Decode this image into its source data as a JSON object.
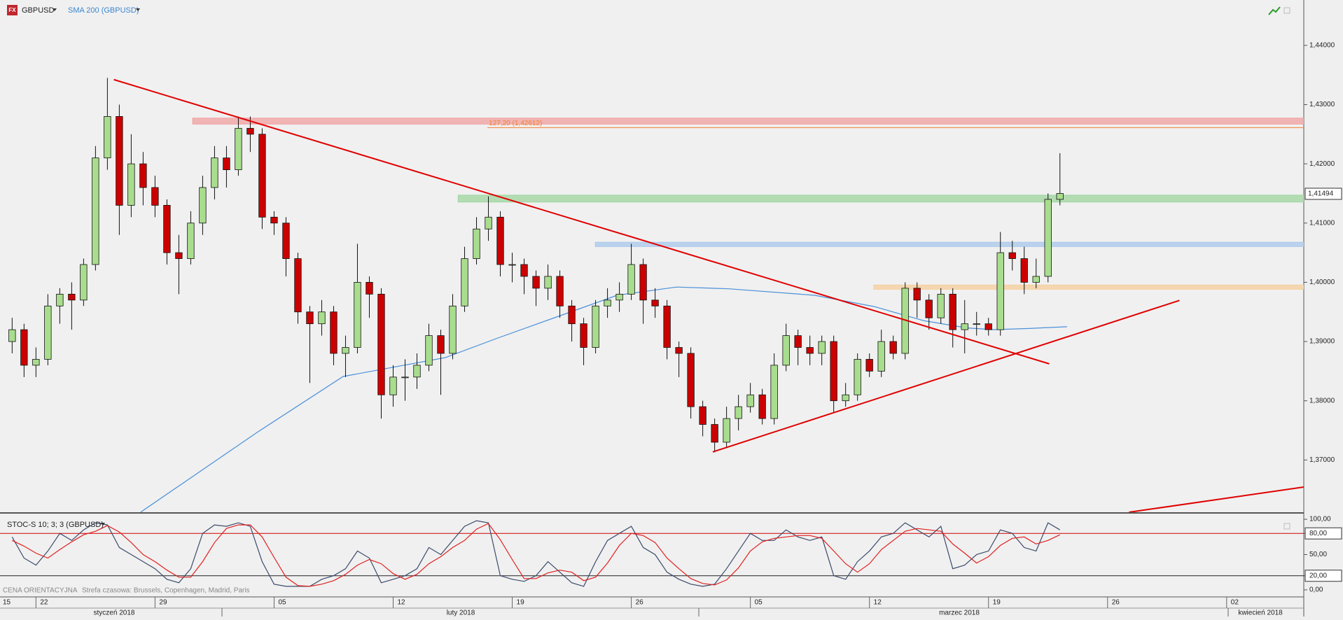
{
  "toolbar": {
    "icon": "FX"
  },
  "footer": {
    "reference": "CENA ORIENTACYJNA",
    "timezone": "Strefa czasowa: Brussels, Copenhagen, Madrid, Paris"
  },
  "chart_data": [
    {
      "type": "candlestick",
      "symbol": "GBPUSD",
      "x": [
        -1,
        -0.5,
        0,
        0.5,
        1,
        1.5,
        2,
        2.5,
        3,
        3.5,
        4,
        4.5,
        5,
        5.5,
        6,
        6.5,
        7,
        7.5,
        8,
        8.5,
        9,
        9.5,
        10,
        10.5,
        11,
        11.5,
        12,
        12.5,
        13,
        13.5,
        14,
        14.5,
        15,
        15.5,
        16,
        16.5,
        17,
        17.5,
        18,
        18.5,
        19,
        19.5,
        20,
        20.5,
        21,
        21.5,
        22,
        22.5,
        23,
        23.5,
        24,
        24.5,
        25,
        25.5,
        26,
        26.5,
        27,
        27.5,
        28,
        28.5,
        29,
        29.5,
        30,
        30.5,
        31,
        31.5,
        32,
        32.5,
        33,
        33.5,
        34,
        34.5,
        35,
        35.5,
        36,
        36.5,
        37,
        37.5,
        38,
        38.5,
        39,
        39.5,
        40,
        40.5,
        41,
        41.5,
        42,
        42.5,
        43
      ],
      "open": [
        1.39,
        1.392,
        1.386,
        1.387,
        1.396,
        1.398,
        1.397,
        1.403,
        1.421,
        1.428,
        1.413,
        1.42,
        1.416,
        1.413,
        1.405,
        1.404,
        1.41,
        1.416,
        1.421,
        1.419,
        1.426,
        1.425,
        1.411,
        1.41,
        1.404,
        1.395,
        1.393,
        1.395,
        1.388,
        1.389,
        1.4,
        1.398,
        1.381,
        1.384,
        1.384,
        1.386,
        1.391,
        1.388,
        1.396,
        1.404,
        1.409,
        1.411,
        1.403,
        1.403,
        1.401,
        1.399,
        1.401,
        1.396,
        1.393,
        1.389,
        1.396,
        1.397,
        1.398,
        1.403,
        1.397,
        1.396,
        1.389,
        1.388,
        1.379,
        1.376,
        1.373,
        1.377,
        1.379,
        1.381,
        1.377,
        1.386,
        1.391,
        1.389,
        1.388,
        1.39,
        1.38,
        1.381,
        1.387,
        1.385,
        1.39,
        1.388,
        1.399,
        1.397,
        1.394,
        1.398,
        1.392,
        1.393,
        1.393,
        1.392,
        1.405,
        1.404,
        1.4,
        1.401,
        1.414
      ],
      "high": [
        1.394,
        1.393,
        1.389,
        1.398,
        1.399,
        1.4,
        1.404,
        1.423,
        1.4345,
        1.43,
        1.425,
        1.422,
        1.418,
        1.414,
        1.408,
        1.412,
        1.418,
        1.423,
        1.423,
        1.428,
        1.428,
        1.426,
        1.412,
        1.411,
        1.405,
        1.396,
        1.397,
        1.396,
        1.391,
        1.4065,
        1.401,
        1.399,
        1.386,
        1.387,
        1.388,
        1.393,
        1.392,
        1.398,
        1.406,
        1.411,
        1.4145,
        1.412,
        1.405,
        1.404,
        1.402,
        1.403,
        1.402,
        1.397,
        1.394,
        1.397,
        1.399,
        1.4,
        1.4065,
        1.404,
        1.399,
        1.397,
        1.39,
        1.389,
        1.38,
        1.377,
        1.379,
        1.381,
        1.383,
        1.382,
        1.388,
        1.393,
        1.392,
        1.391,
        1.391,
        1.391,
        1.383,
        1.388,
        1.388,
        1.392,
        1.391,
        1.4,
        1.4,
        1.398,
        1.399,
        1.399,
        1.397,
        1.395,
        1.394,
        1.4085,
        1.407,
        1.406,
        1.404,
        1.415,
        1.4218
      ],
      "low": [
        1.388,
        1.384,
        1.384,
        1.386,
        1.393,
        1.392,
        1.396,
        1.402,
        1.419,
        1.408,
        1.411,
        1.413,
        1.411,
        1.403,
        1.398,
        1.403,
        1.408,
        1.414,
        1.416,
        1.418,
        1.422,
        1.409,
        1.408,
        1.401,
        1.393,
        1.383,
        1.391,
        1.386,
        1.384,
        1.388,
        1.394,
        1.377,
        1.379,
        1.38,
        1.382,
        1.385,
        1.381,
        1.387,
        1.395,
        1.403,
        1.407,
        1.401,
        1.4,
        1.398,
        1.396,
        1.397,
        1.394,
        1.39,
        1.386,
        1.388,
        1.394,
        1.395,
        1.397,
        1.393,
        1.394,
        1.387,
        1.384,
        1.377,
        1.374,
        1.3713,
        1.372,
        1.375,
        1.378,
        1.376,
        1.376,
        1.385,
        1.386,
        1.386,
        1.386,
        1.378,
        1.379,
        1.38,
        1.384,
        1.384,
        1.387,
        1.387,
        1.394,
        1.392,
        1.393,
        1.389,
        1.388,
        1.391,
        1.391,
        1.391,
        1.402,
        1.398,
        1.399,
        1.4,
        1.413
      ],
      "close": [
        1.392,
        1.386,
        1.387,
        1.396,
        1.398,
        1.397,
        1.403,
        1.421,
        1.428,
        1.413,
        1.42,
        1.416,
        1.413,
        1.405,
        1.404,
        1.41,
        1.416,
        1.421,
        1.419,
        1.426,
        1.425,
        1.411,
        1.41,
        1.404,
        1.395,
        1.393,
        1.395,
        1.388,
        1.389,
        1.4,
        1.398,
        1.381,
        1.384,
        1.384,
        1.386,
        1.391,
        1.388,
        1.396,
        1.404,
        1.409,
        1.411,
        1.403,
        1.403,
        1.401,
        1.399,
        1.401,
        1.396,
        1.393,
        1.389,
        1.396,
        1.397,
        1.398,
        1.403,
        1.397,
        1.396,
        1.389,
        1.388,
        1.379,
        1.376,
        1.373,
        1.377,
        1.379,
        1.381,
        1.377,
        1.386,
        1.391,
        1.389,
        1.388,
        1.39,
        1.38,
        1.381,
        1.387,
        1.385,
        1.39,
        1.388,
        1.399,
        1.397,
        1.394,
        1.398,
        1.392,
        1.393,
        1.393,
        1.392,
        1.405,
        1.404,
        1.4,
        1.401,
        1.414,
        1.415
      ],
      "up_color": "#a9dd8e",
      "down_color": "#cc0000",
      "overlays": [
        {
          "name": "SMA 200 (GBPUSD)",
          "color": "#4a90d9",
          "x": [
            4.4,
            9.3,
            12.9,
            17.2,
            19.4,
            21.9,
            24.4,
            26.9,
            29.1,
            32.7,
            35.2,
            37.3,
            39.1,
            40.2,
            41.7,
            43.3
          ],
          "values": [
            1.3612,
            1.3747,
            1.3841,
            1.3873,
            1.3906,
            1.3942,
            1.3978,
            1.3992,
            1.3989,
            1.3978,
            1.3959,
            1.3935,
            1.3923,
            1.392,
            1.3922,
            1.3925
          ]
        }
      ],
      "trendlines": [
        {
          "color": "#e00000",
          "x": [
            3.27,
            42.55
          ],
          "values": [
            1.43422,
            1.38624
          ]
        },
        {
          "color": "#e00000",
          "x": [
            28.42,
            48.02
          ],
          "values": [
            1.37136,
            1.39694
          ]
        },
        {
          "color": "#e00000",
          "x": [
            45.9,
            53.24
          ],
          "values": [
            1.36118,
            1.36543
          ]
        }
      ],
      "zones": [
        {
          "color": "#f2a0a0",
          "x0": 6.58,
          "range": [
            1.42671,
            1.42772
          ]
        },
        {
          "color": "#9fd69f",
          "x0": 17.73,
          "range": [
            1.41355,
            1.41471
          ]
        },
        {
          "color": "#a9c8ec",
          "x0": 23.49,
          "range": [
            1.40604,
            1.40676
          ]
        },
        {
          "color": "#f6cf9c",
          "x0": 35.18,
          "range": [
            1.39882,
            1.39954
          ]
        }
      ],
      "fib_level": {
        "value": 1.42612,
        "label": "127,20 (1,42612)",
        "color": "#f08030",
        "x0": 18.96
      },
      "last_price": {
        "value": 1.41494,
        "label": "1,41494"
      },
      "xlim": [
        -1.51,
        53.24
      ],
      "xticks": [
        {
          "value": -5,
          "label": "15"
        },
        {
          "value": 0,
          "label": "22"
        },
        {
          "value": 5,
          "label": "29"
        },
        {
          "value": 10,
          "label": "05"
        },
        {
          "value": 15,
          "label": "12"
        },
        {
          "value": 20,
          "label": "19"
        },
        {
          "value": 25,
          "label": "26"
        },
        {
          "value": 30,
          "label": "05"
        },
        {
          "value": 35,
          "label": "12"
        },
        {
          "value": 40,
          "label": "19"
        },
        {
          "value": 45,
          "label": "26"
        },
        {
          "value": 50,
          "label": "02"
        }
      ],
      "months": [
        "styczeń 2018",
        "luty 2018",
        "marzec 2018",
        "kwiecień 2018"
      ],
      "ylim": [
        1.36118,
        1.44766
      ],
      "yticks": [
        {
          "value": 1.37,
          "label": "1,37000"
        },
        {
          "value": 1.38,
          "label": "1,38000"
        },
        {
          "value": 1.39,
          "label": "1,39000"
        },
        {
          "value": 1.4,
          "label": "1,40000"
        },
        {
          "value": 1.41,
          "label": "1,41000"
        },
        {
          "value": 1.42,
          "label": "1,42000"
        },
        {
          "value": 1.43,
          "label": "1,43000"
        },
        {
          "value": 1.44,
          "label": "1,44000"
        }
      ]
    },
    {
      "type": "line",
      "title": "STOC-S 10; 3; 3 (GBPUSD)",
      "x": [
        -1,
        -0.5,
        0,
        0.5,
        1,
        1.5,
        2,
        2.5,
        3,
        3.5,
        4,
        4.5,
        5,
        5.5,
        6,
        6.5,
        7,
        7.5,
        8,
        8.5,
        9,
        9.5,
        10,
        10.5,
        11,
        11.5,
        12,
        12.5,
        13,
        13.5,
        14,
        14.5,
        15,
        15.5,
        16,
        16.5,
        17,
        17.5,
        18,
        18.5,
        19,
        19.5,
        20,
        20.5,
        21,
        21.5,
        22,
        22.5,
        23,
        23.5,
        24,
        24.5,
        25,
        25.5,
        26,
        26.5,
        27,
        27.5,
        28,
        28.5,
        29,
        29.5,
        30,
        30.5,
        31,
        31.5,
        32,
        32.5,
        33,
        33.5,
        34,
        34.5,
        35,
        35.5,
        36,
        36.5,
        37,
        37.5,
        38,
        38.5,
        39,
        39.5,
        40,
        40.5,
        41,
        41.5,
        42,
        42.5,
        43
      ],
      "series": [
        {
          "color": "#3b4a6b",
          "values": [
            75,
            45,
            35,
            55,
            80,
            70,
            85,
            95,
            92,
            60,
            50,
            40,
            30,
            15,
            10,
            30,
            80,
            92,
            90,
            95,
            90,
            40,
            8,
            5,
            5,
            5,
            15,
            20,
            30,
            55,
            45,
            10,
            15,
            20,
            30,
            60,
            50,
            70,
            90,
            98,
            95,
            20,
            15,
            12,
            20,
            40,
            25,
            10,
            5,
            40,
            70,
            80,
            90,
            60,
            50,
            25,
            15,
            8,
            5,
            8,
            30,
            55,
            80,
            70,
            70,
            85,
            75,
            70,
            75,
            20,
            15,
            40,
            55,
            75,
            80,
            95,
            85,
            75,
            90,
            30,
            35,
            50,
            55,
            85,
            80,
            60,
            55,
            95,
            85
          ]
        },
        {
          "color": "#e02020",
          "values": [
            70,
            62,
            52,
            45,
            57,
            68,
            78,
            83,
            91,
            82,
            67,
            50,
            40,
            28,
            18,
            18,
            40,
            67,
            87,
            92,
            92,
            75,
            46,
            18,
            6,
            5,
            8,
            13,
            22,
            35,
            43,
            37,
            23,
            15,
            22,
            37,
            47,
            60,
            70,
            86,
            94,
            71,
            43,
            16,
            16,
            24,
            28,
            25,
            13,
            18,
            38,
            63,
            80,
            77,
            67,
            45,
            30,
            16,
            9,
            7,
            14,
            31,
            55,
            68,
            73,
            75,
            77,
            77,
            73,
            55,
            37,
            25,
            37,
            57,
            70,
            83,
            87,
            85,
            83,
            65,
            52,
            38,
            47,
            63,
            73,
            75,
            65,
            70,
            78
          ]
        }
      ],
      "levels": [
        {
          "value": 80,
          "color": "#d00000"
        },
        {
          "value": 20,
          "color": "#222222"
        }
      ],
      "ylim": [
        -10,
        107
      ],
      "yticks": [
        {
          "value": 0,
          "label": "0,00"
        },
        {
          "value": 20,
          "label": "20,00"
        },
        {
          "value": 50,
          "label": "50,00"
        },
        {
          "value": 80,
          "label": "80,00"
        },
        {
          "value": 100,
          "label": "100,00"
        }
      ]
    }
  ]
}
